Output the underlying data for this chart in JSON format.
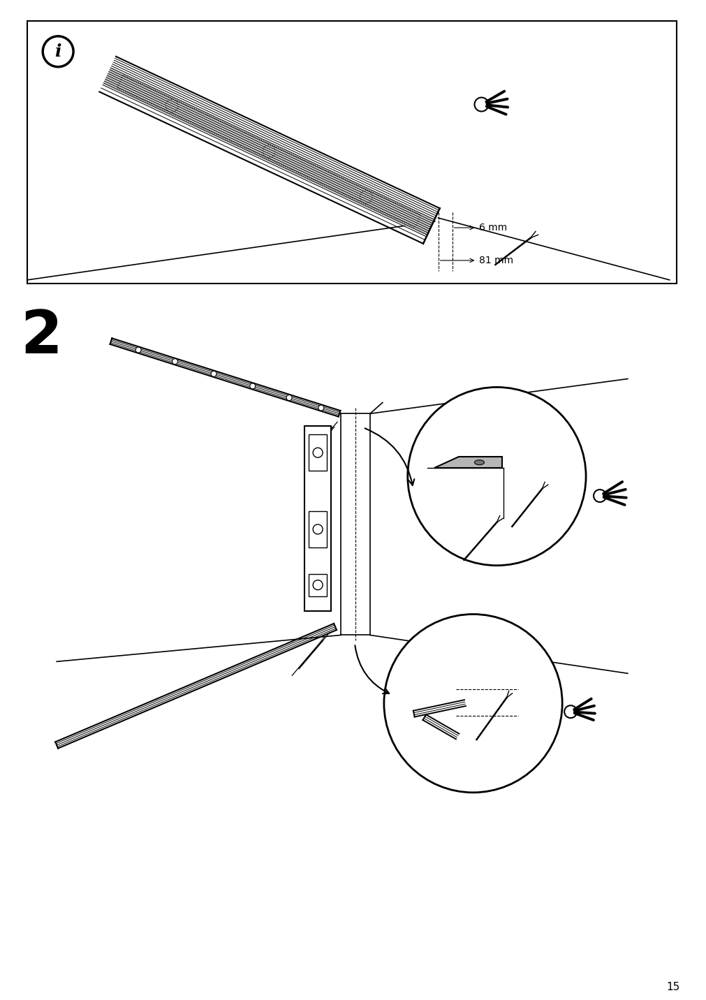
{
  "page_number": "15",
  "bg": "#ffffff",
  "lc": "#000000",
  "gray": "#c0c0c0",
  "dim_6mm": "6 mm",
  "dim_81mm": "81 mm",
  "step2": "2"
}
